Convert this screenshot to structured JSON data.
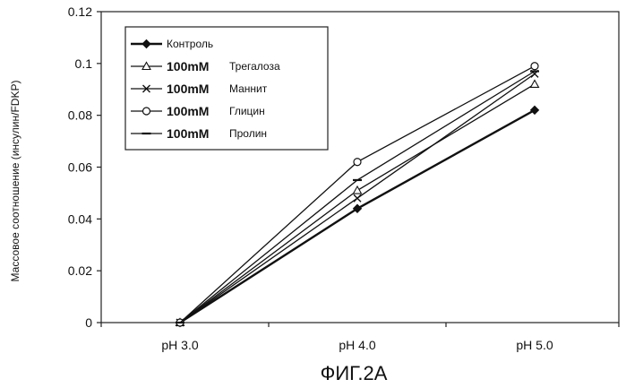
{
  "figure_caption": "ФИГ.2А",
  "chart_data": {
    "type": "line",
    "categories": [
      "pH 3.0",
      "pH 4.0",
      "pH 5.0"
    ],
    "ylabel": "Массовое соотношение (инсулин/FDKP)",
    "xlabel": "",
    "ylim": [
      0,
      0.12
    ],
    "yticks": [
      0,
      0.02,
      0.04,
      0.06,
      0.08,
      0.1,
      0.12
    ],
    "ytick_labels": [
      "0",
      "0.02",
      "0.04",
      "0.06",
      "0.08",
      "0.1",
      "0.12"
    ],
    "grid": false,
    "legend_position": "top-left",
    "series": [
      {
        "name": "Контроль",
        "prefix": "",
        "marker": "diamond",
        "values": [
          0,
          0.044,
          0.082
        ]
      },
      {
        "name": "Трегалоза",
        "prefix": "100mM",
        "marker": "triangle",
        "values": [
          0,
          0.051,
          0.092
        ]
      },
      {
        "name": "Маннит",
        "prefix": "100mM",
        "marker": "x",
        "values": [
          0,
          0.048,
          0.096
        ]
      },
      {
        "name": "Глицин",
        "prefix": "100mM",
        "marker": "circle",
        "values": [
          0,
          0.062,
          0.099
        ]
      },
      {
        "name": "Пролин",
        "prefix": "100mM",
        "marker": "dash",
        "values": [
          0,
          0.055,
          0.097
        ]
      }
    ]
  }
}
